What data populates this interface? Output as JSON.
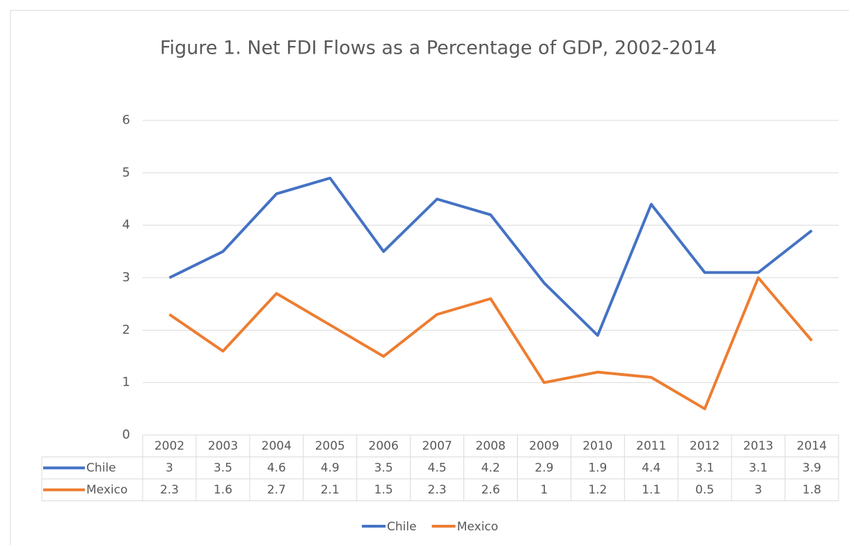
{
  "chart_data": {
    "type": "line",
    "title": "Figure 1. Net FDI Flows as a Percentage of GDP, 2002-2014",
    "categories": [
      "2002",
      "2003",
      "2004",
      "2005",
      "2006",
      "2007",
      "2008",
      "2009",
      "2010",
      "2011",
      "2012",
      "2013",
      "2014"
    ],
    "series": [
      {
        "name": "Chile",
        "color": "#4472c4",
        "values": [
          3,
          3.5,
          4.6,
          4.9,
          3.5,
          4.5,
          4.2,
          2.9,
          1.9,
          4.4,
          3.1,
          3.1,
          3.9
        ]
      },
      {
        "name": "Mexico",
        "color": "#ed7d31",
        "values": [
          2.3,
          1.6,
          2.7,
          2.1,
          1.5,
          2.3,
          2.6,
          1,
          1.2,
          1.1,
          0.5,
          3,
          1.8
        ]
      }
    ],
    "ylim": [
      0,
      6
    ],
    "yticks": [
      0,
      1,
      2,
      3,
      4,
      5,
      6
    ],
    "grid": true,
    "legend": "bottom"
  }
}
